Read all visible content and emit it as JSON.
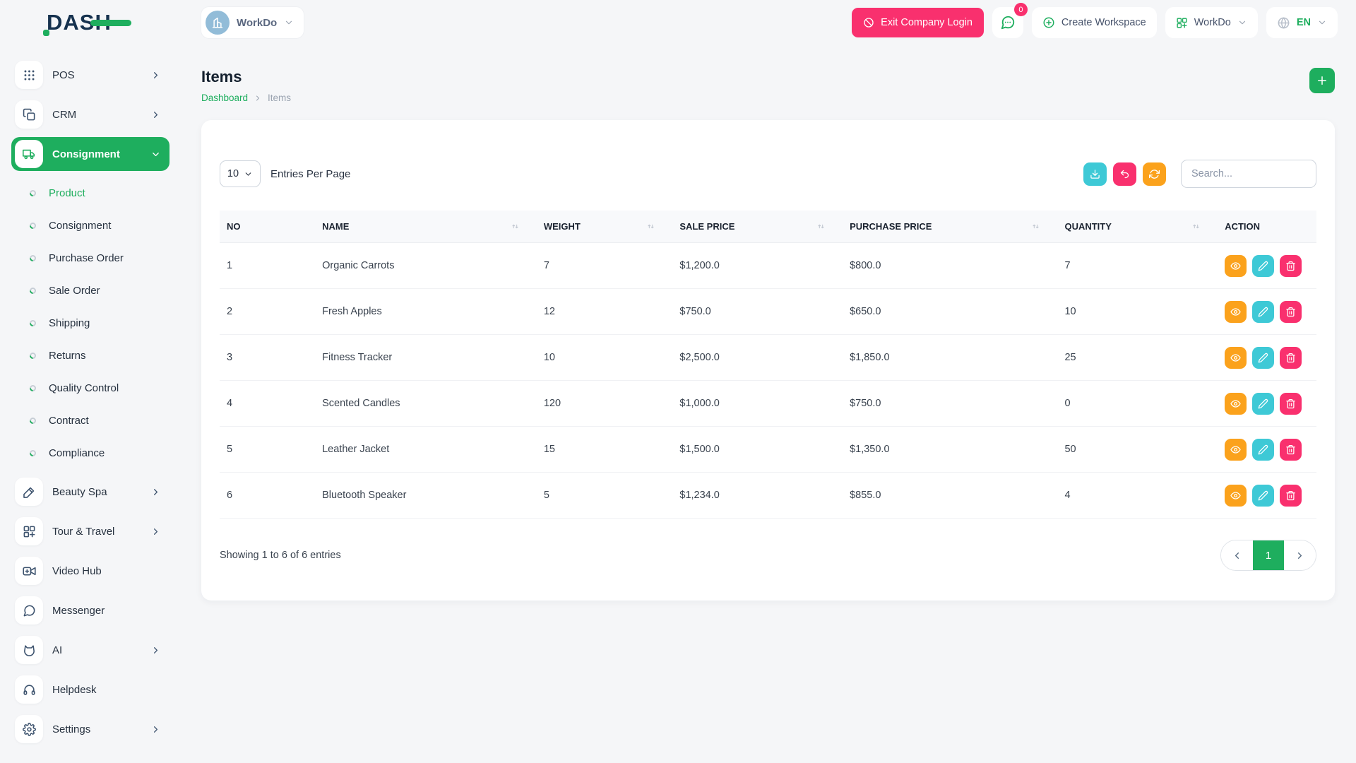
{
  "brand": {
    "name": "DASH"
  },
  "topbar": {
    "workspace_pill": {
      "label": "WorkDo",
      "avatar_icon": "building-icon"
    },
    "exit_company_login": {
      "label": "Exit Company Login"
    },
    "messages": {
      "badge_count": "0"
    },
    "create_workspace": {
      "label": "Create Workspace"
    },
    "app_menu": {
      "label": "WorkDo"
    },
    "language_menu": {
      "label": "EN"
    }
  },
  "sidebar": {
    "items": [
      {
        "label": "POS",
        "icon": "grid-dots-icon",
        "chevron": "right"
      },
      {
        "label": "CRM",
        "icon": "copy-icon",
        "chevron": "right"
      },
      {
        "label": "Consignment",
        "icon": "truck-icon",
        "chevron": "down",
        "active": true,
        "submenu": [
          {
            "label": "Product",
            "active": true
          },
          {
            "label": "Consignment"
          },
          {
            "label": "Purchase Order"
          },
          {
            "label": "Sale Order"
          },
          {
            "label": "Shipping"
          },
          {
            "label": "Returns"
          },
          {
            "label": "Quality Control"
          },
          {
            "label": "Contract"
          },
          {
            "label": "Compliance"
          }
        ]
      },
      {
        "label": "Beauty Spa",
        "icon": "brush-icon",
        "chevron": "right"
      },
      {
        "label": "Tour & Travel",
        "icon": "grid-plus-icon",
        "chevron": "right"
      },
      {
        "label": "Video Hub",
        "icon": "video-icon"
      },
      {
        "label": "Messenger",
        "icon": "chat-icon"
      },
      {
        "label": "AI",
        "icon": "ai-icon",
        "chevron": "right"
      },
      {
        "label": "Helpdesk",
        "icon": "headset-icon"
      },
      {
        "label": "Settings",
        "icon": "gear-icon",
        "chevron": "right"
      }
    ]
  },
  "page": {
    "title": "Items",
    "breadcrumb": {
      "home": "Dashboard",
      "current": "Items"
    }
  },
  "toolbar": {
    "entries_per_page_value": "10",
    "entries_per_page_label": "Entries Per Page",
    "search_placeholder": "Search..."
  },
  "table": {
    "columns": [
      {
        "label": "NO",
        "sortable": false
      },
      {
        "label": "NAME",
        "sortable": true
      },
      {
        "label": "WEIGHT",
        "sortable": true
      },
      {
        "label": "SALE PRICE",
        "sortable": true
      },
      {
        "label": "PURCHASE PRICE",
        "sortable": true
      },
      {
        "label": "QUANTITY",
        "sortable": true
      },
      {
        "label": "ACTION",
        "sortable": false
      }
    ],
    "rows": [
      {
        "no": "1",
        "name": "Organic Carrots",
        "weight": "7",
        "sale_price": "$1,200.0",
        "purchase_price": "$800.0",
        "quantity": "7"
      },
      {
        "no": "2",
        "name": "Fresh Apples",
        "weight": "12",
        "sale_price": "$750.0",
        "purchase_price": "$650.0",
        "quantity": "10"
      },
      {
        "no": "3",
        "name": "Fitness Tracker",
        "weight": "10",
        "sale_price": "$2,500.0",
        "purchase_price": "$1,850.0",
        "quantity": "25"
      },
      {
        "no": "4",
        "name": "Scented Candles",
        "weight": "120",
        "sale_price": "$1,000.0",
        "purchase_price": "$750.0",
        "quantity": "0"
      },
      {
        "no": "5",
        "name": "Leather Jacket",
        "weight": "15",
        "sale_price": "$1,500.0",
        "purchase_price": "$1,350.0",
        "quantity": "50"
      },
      {
        "no": "6",
        "name": "Bluetooth Speaker",
        "weight": "5",
        "sale_price": "$1,234.0",
        "purchase_price": "$855.0",
        "quantity": "4"
      }
    ],
    "row_actions": [
      {
        "name": "view",
        "icon": "eye-icon",
        "color": "#fba21c"
      },
      {
        "name": "edit",
        "icon": "pencil-icon",
        "color": "#3ec9d6"
      },
      {
        "name": "delete",
        "icon": "trash-icon",
        "color": "#f9306e"
      }
    ]
  },
  "table_footer": {
    "summary": "Showing 1 to 6 of 6 entries",
    "current_page": "1"
  },
  "colors": {
    "primary": "#1eae5e",
    "danger": "#f9306e",
    "info": "#3ec9d6",
    "warning": "#fba21c"
  }
}
